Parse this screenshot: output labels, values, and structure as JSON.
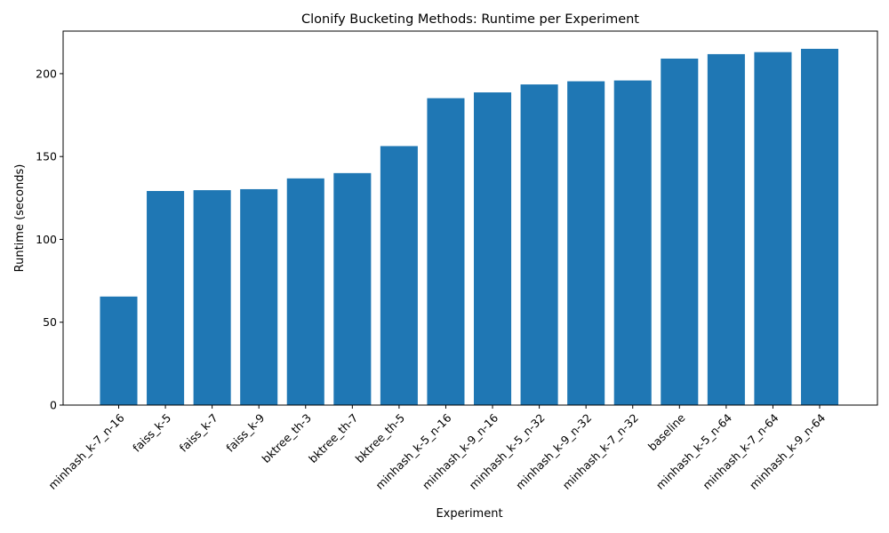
{
  "chart_data": {
    "type": "bar",
    "title": "Clonify Bucketing Methods: Runtime per Experiment",
    "xlabel": "Experiment",
    "ylabel": "Runtime (seconds)",
    "categories": [
      "minhash_k-7_n-16",
      "faiss_k-5",
      "faiss_k-7",
      "faiss_k-9",
      "bktree_th-3",
      "bktree_th-7",
      "bktree_th-5",
      "minhash_k-5_n-16",
      "minhash_k-9_n-16",
      "minhash_k-5_n-32",
      "minhash_k-9_n-32",
      "minhash_k-7_n-32",
      "baseline",
      "minhash_k-5_n-64",
      "minhash_k-7_n-64",
      "minhash_k-9_n-64"
    ],
    "values": [
      65.5,
      129.2,
      129.7,
      130.3,
      136.8,
      140.0,
      156.3,
      185.2,
      188.7,
      193.5,
      195.4,
      195.9,
      209.1,
      211.8,
      213.0,
      215.0
    ],
    "ylim": [
      0,
      225.7
    ],
    "yticks": [
      0,
      50,
      100,
      150,
      200
    ],
    "grid": false,
    "bar_color": "#1f77b4"
  }
}
